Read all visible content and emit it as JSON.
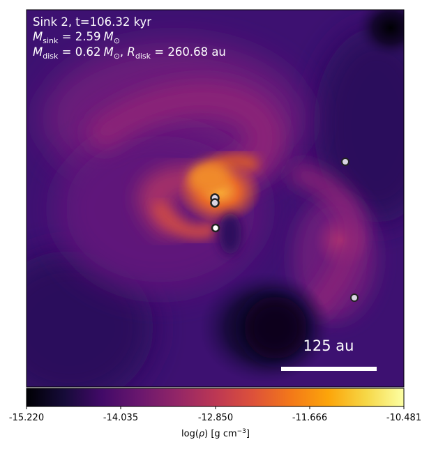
{
  "annotation": {
    "line1": "Sink 2, t=106.32 kyr",
    "msink_symbol": "M",
    "msink_sub": "sink",
    "msink_value": " = 2.59",
    "msink_unit": "M",
    "msink_unit_sub": "⊙",
    "mdisk_symbol": "M",
    "mdisk_sub": "disk",
    "mdisk_value": " = 0.62",
    "mdisk_unit": "M",
    "mdisk_unit_sub": "⊙",
    "rdisk_symbol": "R",
    "rdisk_sub": "disk",
    "rdisk_value": " = 260.68 au"
  },
  "scalebar": {
    "label": "125 au"
  },
  "colorbar": {
    "ticks": [
      "-15.220",
      "-14.035",
      "-12.850",
      "-11.666",
      "-10.481"
    ],
    "label_main": "log(",
    "label_rho": "ρ",
    "label_rest": ") [g cm",
    "label_exp": "−3",
    "label_end": "]",
    "colormap": "inferno",
    "vmin": -15.22,
    "vmax": -10.481
  },
  "colors": {
    "background_dark": "#1b0a45",
    "mid_purple": "#5b1580",
    "magenta": "#9a2a7a",
    "orange": "#e8682a",
    "yellow": "#fbb63a",
    "sink_fill": "#d9d4e2",
    "sink_edge": "#222222"
  },
  "sinks": [
    {
      "id": "sink-a"
    },
    {
      "id": "sink-b"
    },
    {
      "id": "sink-c"
    },
    {
      "id": "sink-d"
    },
    {
      "id": "sink-e"
    }
  ]
}
